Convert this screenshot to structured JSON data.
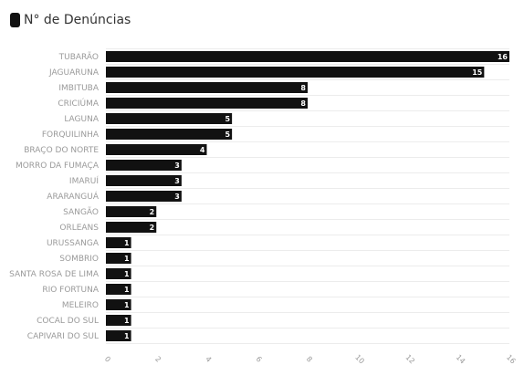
{
  "chart_data": {
    "type": "bar",
    "orientation": "horizontal",
    "legend": "N° de Denúncias",
    "legend_position": "top-left",
    "bar_color": "#111111",
    "categories": [
      "TUBARÃO",
      "JAGUARUNA",
      "IMBITUBA",
      "CRICIÚMA",
      "LAGUNA",
      "FORQUILINHA",
      "BRAÇO DO NORTE",
      "MORRO DA FUMAÇA",
      "IMARUÍ",
      "ARARANGUÁ",
      "SANGÃO",
      "ORLEANS",
      "URUSSANGA",
      "SOMBRIO",
      "SANTA ROSA DE LIMA",
      "RIO FORTUNA",
      "MELEIRO",
      "COCAL DO SUL",
      "CAPIVARI DO SUL"
    ],
    "values": [
      16,
      15,
      8,
      8,
      5,
      5,
      4,
      3,
      3,
      3,
      2,
      2,
      1,
      1,
      1,
      1,
      1,
      1,
      1
    ],
    "xlim": [
      0,
      16
    ],
    "xticks": [
      "0",
      "2",
      "4",
      "6",
      "8",
      "10",
      "12",
      "14",
      "16"
    ],
    "grid": true,
    "data_labels": true
  }
}
